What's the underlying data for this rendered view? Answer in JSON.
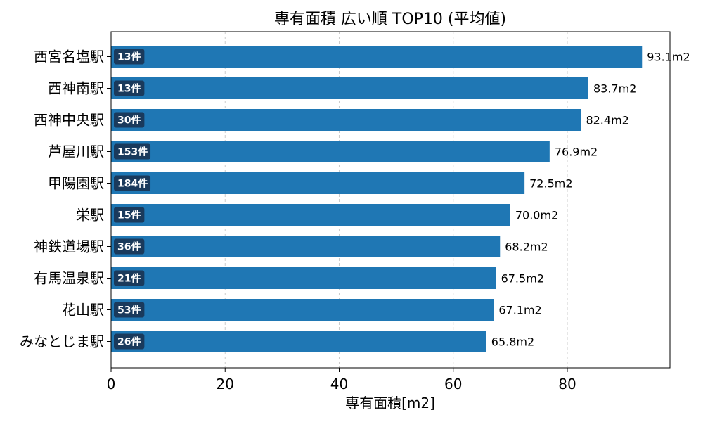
{
  "chart_data": {
    "type": "bar",
    "orientation": "horizontal",
    "title": "専有面積 広い順 TOP10 (平均値)",
    "xlabel": "専有面積[m2]",
    "ylabel": "",
    "xlim": [
      0,
      98
    ],
    "xticks": [
      0,
      20,
      40,
      60,
      80
    ],
    "grid": "x-dashed",
    "bar_color": "#1f77b4",
    "count_badge_color": "#1a3a5c",
    "categories": [
      "西宮名塩駅",
      "西神南駅",
      "西神中央駅",
      "芦屋川駅",
      "甲陽園駅",
      "栄駅",
      "神鉄道場駅",
      "有馬温泉駅",
      "花山駅",
      "みなとじま駅"
    ],
    "values": [
      93.1,
      83.7,
      82.4,
      76.9,
      72.5,
      70.0,
      68.2,
      67.5,
      67.1,
      65.8
    ],
    "value_labels": [
      "93.1m2",
      "83.7m2",
      "82.4m2",
      "76.9m2",
      "72.5m2",
      "70.0m2",
      "68.2m2",
      "67.5m2",
      "67.1m2",
      "65.8m2"
    ],
    "counts": [
      "13件",
      "13件",
      "30件",
      "153件",
      "184件",
      "15件",
      "36件",
      "21件",
      "53件",
      "26件"
    ]
  }
}
